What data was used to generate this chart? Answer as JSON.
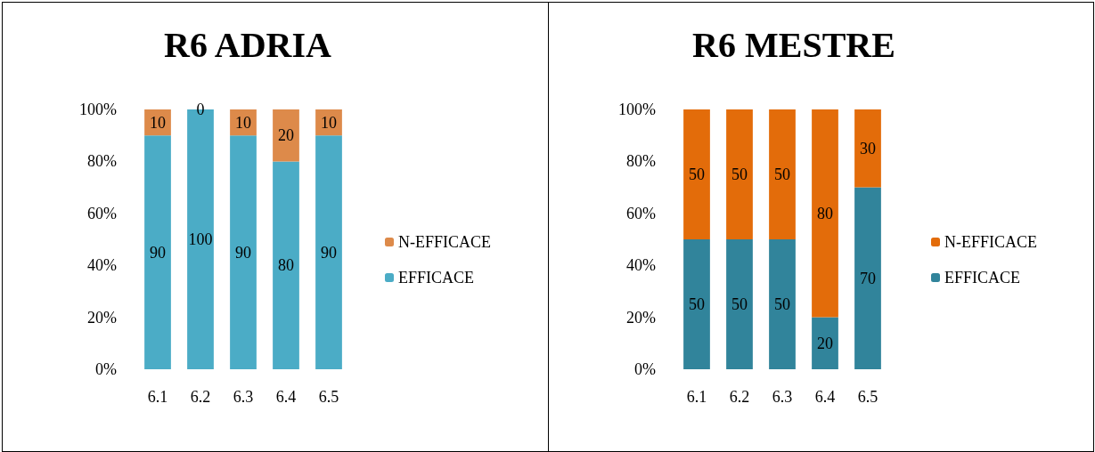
{
  "chart_data": [
    {
      "type": "bar",
      "title": "R6 ADRIA",
      "categories": [
        "6.1",
        "6.2",
        "6.3",
        "6.4",
        "6.5"
      ],
      "stacked": true,
      "data_labels": true,
      "legend": "right",
      "grid": false,
      "series": [
        {
          "name": "EFFICACE",
          "color": "#4bacc6",
          "values": [
            90,
            100,
            90,
            80,
            90
          ]
        },
        {
          "name": "N-EFFICACE",
          "color": "#dd8a4a",
          "values": [
            10,
            0,
            10,
            20,
            10
          ]
        }
      ],
      "ylim": [
        0,
        100
      ],
      "yticks": [
        {
          "value": 0,
          "label": "0%"
        },
        {
          "value": 20,
          "label": "20%"
        },
        {
          "value": 40,
          "label": "40%"
        },
        {
          "value": 60,
          "label": "60%"
        },
        {
          "value": 80,
          "label": "80%"
        },
        {
          "value": 100,
          "label": "100%"
        }
      ]
    },
    {
      "type": "bar",
      "title": "R6 MESTRE",
      "categories": [
        "6.1",
        "6.2",
        "6.3",
        "6.4",
        "6.5"
      ],
      "stacked": true,
      "data_labels": true,
      "legend": "right",
      "grid": false,
      "series": [
        {
          "name": "EFFICACE",
          "color": "#31849b",
          "values": [
            50,
            50,
            50,
            20,
            70
          ]
        },
        {
          "name": "N-EFFICACE",
          "color": "#e36c0a",
          "values": [
            50,
            50,
            50,
            80,
            30
          ]
        }
      ],
      "ylim": [
        0,
        100
      ],
      "yticks": [
        {
          "value": 0,
          "label": "0%"
        },
        {
          "value": 20,
          "label": "20%"
        },
        {
          "value": 40,
          "label": "40%"
        },
        {
          "value": 60,
          "label": "60%"
        },
        {
          "value": 80,
          "label": "80%"
        },
        {
          "value": 100,
          "label": "100%"
        }
      ]
    }
  ]
}
